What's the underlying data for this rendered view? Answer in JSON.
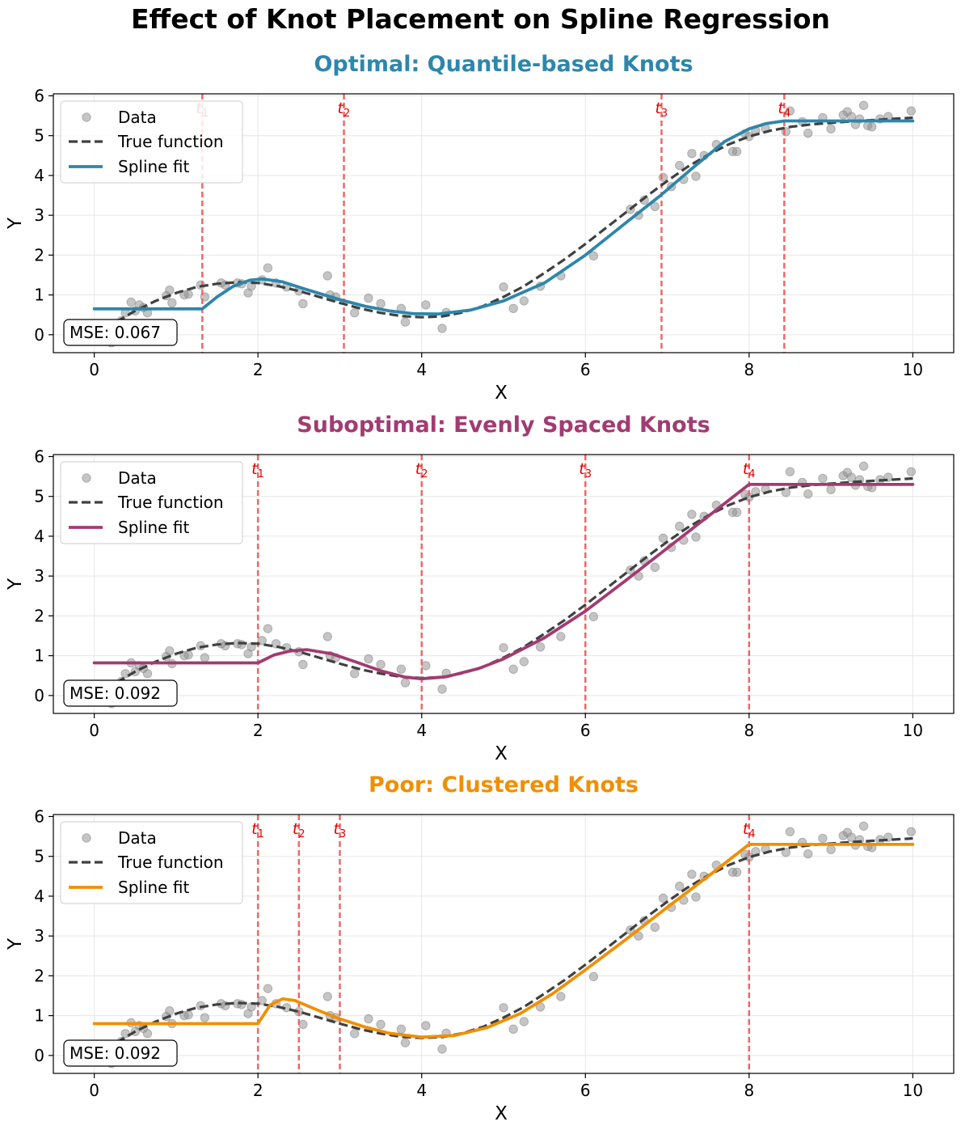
{
  "figure_title": "Effect of Knot Placement on Spline Regression",
  "colors": {
    "data_points": "#8c8c8c",
    "true_function": "#404040",
    "knot_line": "#f06060",
    "knot_label": "#e00000",
    "grid": "#e6e6e6"
  },
  "chart_data": [
    {
      "type": "scatter+line",
      "title": "Optimal: Quantile-based Knots",
      "title_color": "#2e86ab",
      "spline_color": "#2e86ab",
      "xlabel": "X",
      "ylabel": "Y",
      "xlim": [
        -0.5,
        10.5
      ],
      "ylim": [
        -0.45,
        6.05
      ],
      "xticks": [
        0,
        2,
        4,
        6,
        8,
        10
      ],
      "yticks": [
        0,
        1,
        2,
        3,
        4,
        5,
        6
      ],
      "grid": true,
      "legend": {
        "position": "upper-left",
        "entries": [
          "Data",
          "True function",
          "Spline fit"
        ]
      },
      "knots": [
        {
          "x": 1.32,
          "label": "t",
          "sub": "1"
        },
        {
          "x": 3.05,
          "label": "t",
          "sub": "2"
        },
        {
          "x": 6.93,
          "label": "t",
          "sub": "3"
        },
        {
          "x": 8.43,
          "label": "t",
          "sub": "4"
        }
      ],
      "annotation": "MSE: 0.067",
      "spline_fit": {
        "x": [
          0,
          1.32,
          1.5,
          1.7,
          1.9,
          2.05,
          2.3,
          2.6,
          3.0,
          3.3,
          3.6,
          3.9,
          4.2,
          4.6,
          5.0,
          5.5,
          6.0,
          6.5,
          6.93,
          7.3,
          7.7,
          8.0,
          8.2,
          8.43,
          9.0,
          10.0
        ],
        "y": [
          0.65,
          0.65,
          0.95,
          1.22,
          1.37,
          1.4,
          1.33,
          1.13,
          0.88,
          0.72,
          0.6,
          0.53,
          0.52,
          0.62,
          0.85,
          1.3,
          2.0,
          2.82,
          3.52,
          4.17,
          4.85,
          5.17,
          5.3,
          5.37,
          5.37,
          5.37
        ]
      }
    },
    {
      "type": "scatter+line",
      "title": "Suboptimal: Evenly Spaced Knots",
      "title_color": "#a23b72",
      "spline_color": "#a23b72",
      "xlabel": "X",
      "ylabel": "Y",
      "xlim": [
        -0.5,
        10.5
      ],
      "ylim": [
        -0.45,
        6.05
      ],
      "xticks": [
        0,
        2,
        4,
        6,
        8,
        10
      ],
      "yticks": [
        0,
        1,
        2,
        3,
        4,
        5,
        6
      ],
      "grid": true,
      "legend": {
        "position": "upper-left",
        "entries": [
          "Data",
          "True function",
          "Spline fit"
        ]
      },
      "knots": [
        {
          "x": 2,
          "label": "t",
          "sub": "1"
        },
        {
          "x": 4,
          "label": "t",
          "sub": "2"
        },
        {
          "x": 6,
          "label": "t",
          "sub": "3"
        },
        {
          "x": 8,
          "label": "t",
          "sub": "4"
        }
      ],
      "annotation": "MSE: 0.092",
      "spline_fit": {
        "x": [
          0,
          2.0,
          2.2,
          2.4,
          2.6,
          2.9,
          3.2,
          3.5,
          3.8,
          4.0,
          4.3,
          4.7,
          5.0,
          5.5,
          6.0,
          6.5,
          7.0,
          7.5,
          8.0,
          8.5,
          9.0,
          10.0
        ],
        "y": [
          0.82,
          0.82,
          1.02,
          1.12,
          1.15,
          1.05,
          0.84,
          0.62,
          0.46,
          0.42,
          0.47,
          0.68,
          0.92,
          1.45,
          2.12,
          2.9,
          3.7,
          4.5,
          5.3,
          5.3,
          5.3,
          5.3
        ]
      }
    },
    {
      "type": "scatter+line",
      "title": "Poor: Clustered Knots",
      "title_color": "#f18f01",
      "spline_color": "#f18f01",
      "xlabel": "X",
      "ylabel": "Y",
      "xlim": [
        -0.5,
        10.5
      ],
      "ylim": [
        -0.45,
        6.05
      ],
      "xticks": [
        0,
        2,
        4,
        6,
        8,
        10
      ],
      "yticks": [
        0,
        1,
        2,
        3,
        4,
        5,
        6
      ],
      "grid": true,
      "legend": {
        "position": "upper-left",
        "entries": [
          "Data",
          "True function",
          "Spline fit"
        ]
      },
      "knots": [
        {
          "x": 2,
          "label": "t",
          "sub": "1"
        },
        {
          "x": 2.5,
          "label": "t",
          "sub": "2"
        },
        {
          "x": 3,
          "label": "t",
          "sub": "3"
        },
        {
          "x": 8,
          "label": "t",
          "sub": "4"
        }
      ],
      "annotation": "MSE: 0.092",
      "spline_fit": {
        "x": [
          0,
          2.0,
          2.15,
          2.3,
          2.45,
          2.6,
          2.8,
          3.0,
          3.3,
          3.6,
          4.0,
          4.4,
          4.8,
          5.2,
          5.6,
          6.0,
          6.5,
          7.0,
          7.5,
          8.0,
          8.5,
          9.0,
          10.0
        ],
        "y": [
          0.8,
          0.8,
          1.27,
          1.42,
          1.38,
          1.25,
          1.08,
          0.92,
          0.72,
          0.56,
          0.46,
          0.5,
          0.7,
          1.05,
          1.55,
          2.15,
          2.92,
          3.72,
          4.5,
          5.3,
          5.3,
          5.3,
          5.3
        ]
      }
    }
  ],
  "shared_series": {
    "true_function": {
      "x": [
        0,
        0.25,
        0.5,
        0.75,
        1.0,
        1.25,
        1.5,
        1.75,
        2.0,
        2.25,
        2.5,
        2.75,
        3.0,
        3.25,
        3.5,
        3.75,
        4.0,
        4.25,
        4.5,
        4.75,
        5.0,
        5.25,
        5.5,
        5.75,
        6.0,
        6.25,
        6.5,
        6.75,
        7.0,
        7.25,
        7.5,
        7.75,
        8.0,
        8.25,
        8.5,
        8.75,
        9.0,
        9.25,
        9.5,
        9.75,
        10.0
      ],
      "y": [
        0.0,
        0.3,
        0.6,
        0.85,
        1.05,
        1.2,
        1.28,
        1.32,
        1.3,
        1.22,
        1.1,
        0.95,
        0.8,
        0.66,
        0.55,
        0.47,
        0.44,
        0.46,
        0.56,
        0.72,
        0.95,
        1.22,
        1.55,
        1.9,
        2.28,
        2.68,
        3.08,
        3.48,
        3.86,
        4.22,
        4.52,
        4.78,
        4.98,
        5.12,
        5.22,
        5.28,
        5.32,
        5.36,
        5.39,
        5.42,
        5.45
      ]
    },
    "data_points": {
      "x": [
        0.08,
        0.21,
        0.33,
        0.38,
        0.45,
        0.5,
        0.55,
        0.6,
        0.65,
        0.88,
        0.92,
        0.95,
        1.1,
        1.15,
        1.3,
        1.35,
        1.55,
        1.6,
        1.75,
        1.8,
        1.88,
        1.92,
        2.05,
        2.12,
        2.22,
        2.35,
        2.5,
        2.55,
        2.85,
        2.88,
        2.95,
        3.18,
        3.35,
        3.5,
        3.75,
        3.8,
        4.05,
        4.25,
        4.3,
        5.0,
        5.12,
        5.25,
        5.45,
        5.7,
        6.1,
        6.55,
        6.65,
        6.72,
        6.85,
        6.95,
        7.05,
        7.15,
        7.2,
        7.3,
        7.35,
        7.45,
        7.6,
        7.8,
        7.85,
        7.95,
        8.0,
        8.08,
        8.2,
        8.45,
        8.5,
        8.65,
        8.72,
        8.9,
        9.0,
        9.15,
        9.2,
        9.25,
        9.3,
        9.35,
        9.4,
        9.45,
        9.5,
        9.6,
        9.7,
        9.98
      ],
      "y": [
        0.05,
        -0.2,
        0.35,
        0.55,
        0.82,
        0.6,
        0.75,
        0.68,
        0.55,
        0.98,
        1.12,
        0.8,
        1.0,
        1.02,
        1.25,
        0.95,
        1.3,
        1.25,
        1.3,
        1.28,
        1.05,
        1.22,
        1.38,
        1.68,
        1.3,
        1.2,
        1.1,
        0.78,
        1.48,
        1.0,
        0.95,
        0.55,
        0.92,
        0.78,
        0.66,
        0.32,
        0.75,
        0.16,
        0.56,
        1.2,
        0.66,
        0.85,
        1.22,
        1.48,
        1.98,
        3.15,
        3.0,
        3.38,
        3.22,
        3.95,
        3.72,
        4.25,
        3.9,
        4.55,
        3.98,
        4.5,
        4.78,
        4.6,
        4.6,
        5.05,
        4.98,
        5.12,
        5.18,
        5.1,
        5.62,
        5.35,
        5.06,
        5.45,
        5.17,
        5.52,
        5.6,
        5.48,
        5.28,
        5.42,
        5.76,
        5.25,
        5.22,
        5.42,
        5.48,
        5.62
      ]
    }
  }
}
